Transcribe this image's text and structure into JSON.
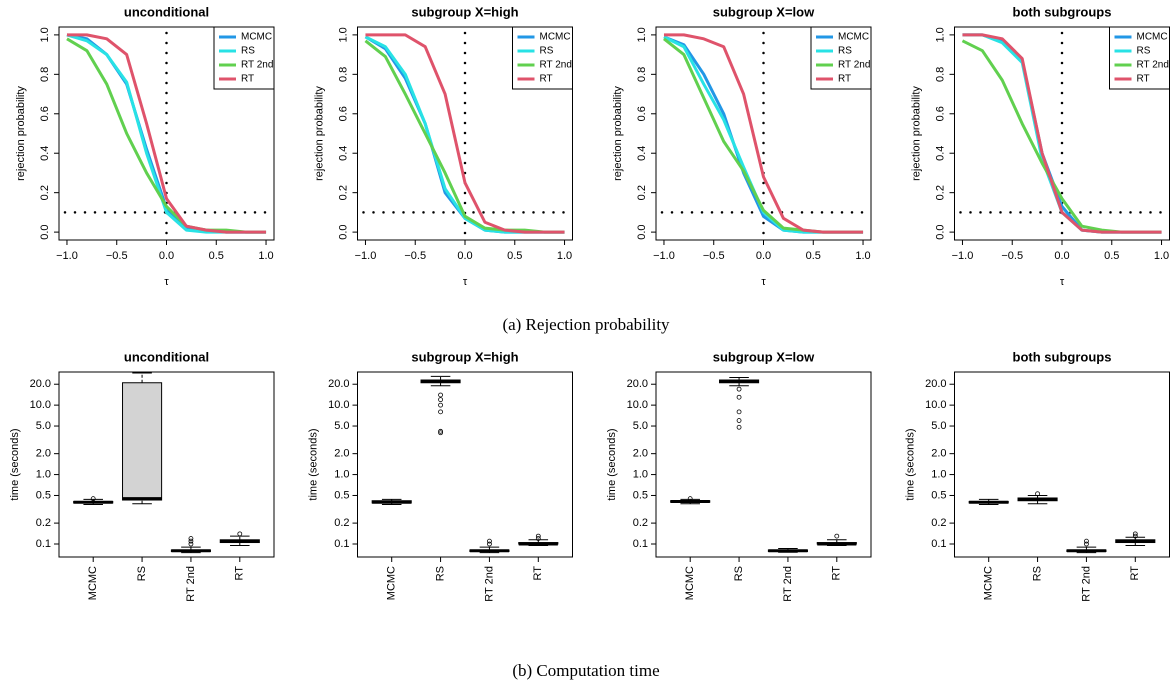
{
  "chart_data": [
    {
      "type": "line",
      "title": "unconditional",
      "xlabel": "τ",
      "ylabel": "rejection probability",
      "x": [
        -1,
        -0.8,
        -0.6,
        -0.4,
        -0.2,
        0,
        0.2,
        0.4,
        0.6,
        0.8,
        1
      ],
      "series": [
        {
          "name": "MCMC",
          "color": "#2297e6",
          "values": [
            1.0,
            0.98,
            0.9,
            0.75,
            0.42,
            0.12,
            0.02,
            0.01,
            0,
            0,
            0
          ]
        },
        {
          "name": "RS",
          "color": "#28e2e5",
          "values": [
            1.0,
            0.97,
            0.9,
            0.76,
            0.4,
            0.1,
            0.01,
            0,
            0,
            0,
            0
          ]
        },
        {
          "name": "RT 2nd",
          "color": "#61d04f",
          "values": [
            0.98,
            0.92,
            0.75,
            0.5,
            0.3,
            0.13,
            0.03,
            0.01,
            0.01,
            0,
            0
          ]
        },
        {
          "name": "RT",
          "color": "#df536b",
          "values": [
            1.0,
            1.0,
            0.98,
            0.9,
            0.55,
            0.17,
            0.03,
            0.01,
            0,
            0,
            0
          ]
        }
      ],
      "hline": 0.1,
      "vline": 0,
      "legend": "topright",
      "xlim": [
        -1.08,
        1.08
      ],
      "ylim": [
        -0.04,
        1.04
      ],
      "xticks": [
        {
          "value": -1,
          "label": "−1.0"
        },
        {
          "value": -0.5,
          "label": "−0.5"
        },
        {
          "value": 0,
          "label": "0.0"
        },
        0.5,
        {
          "value": 1,
          "label": "1.0"
        }
      ],
      "yticks": [
        {
          "value": 0,
          "label": "0.0"
        },
        0.2,
        0.4,
        0.6,
        0.8,
        {
          "value": 1,
          "label": "1.0"
        }
      ]
    },
    {
      "type": "line",
      "title": "subgroup X=high",
      "xlabel": "τ",
      "ylabel": "rejection probability",
      "x": [
        -1,
        -0.8,
        -0.6,
        -0.4,
        -0.2,
        0,
        0.2,
        0.4,
        0.6,
        0.8,
        1
      ],
      "series": [
        {
          "name": "MCMC",
          "color": "#2297e6",
          "values": [
            0.99,
            0.93,
            0.78,
            0.55,
            0.2,
            0.07,
            0.01,
            0,
            0,
            0,
            0
          ]
        },
        {
          "name": "RS",
          "color": "#28e2e5",
          "values": [
            0.99,
            0.94,
            0.8,
            0.55,
            0.22,
            0.07,
            0.01,
            0,
            0,
            0,
            0
          ]
        },
        {
          "name": "RT 2nd",
          "color": "#61d04f",
          "values": [
            0.97,
            0.89,
            0.7,
            0.5,
            0.3,
            0.08,
            0.02,
            0.01,
            0.01,
            0,
            0
          ]
        },
        {
          "name": "RT",
          "color": "#df536b",
          "values": [
            1.0,
            1.0,
            1.0,
            0.94,
            0.7,
            0.25,
            0.05,
            0.01,
            0,
            0,
            0
          ]
        }
      ],
      "hline": 0.1,
      "vline": 0,
      "legend": "topright",
      "xlim": [
        -1.08,
        1.08
      ],
      "ylim": [
        -0.04,
        1.04
      ],
      "xticks": [
        {
          "value": -1,
          "label": "−1.0"
        },
        {
          "value": -0.5,
          "label": "−0.5"
        },
        {
          "value": 0,
          "label": "0.0"
        },
        0.5,
        {
          "value": 1,
          "label": "1.0"
        }
      ],
      "yticks": [
        {
          "value": 0,
          "label": "0.0"
        },
        0.2,
        0.4,
        0.6,
        0.8,
        {
          "value": 1,
          "label": "1.0"
        }
      ]
    },
    {
      "type": "line",
      "title": "subgroup X=low",
      "xlabel": "τ",
      "ylabel": "rejection probability",
      "x": [
        -1,
        -0.8,
        -0.6,
        -0.4,
        -0.2,
        0,
        0.2,
        0.4,
        0.6,
        0.8,
        1
      ],
      "series": [
        {
          "name": "MCMC",
          "color": "#2297e6",
          "values": [
            0.99,
            0.95,
            0.8,
            0.6,
            0.3,
            0.08,
            0.01,
            0,
            0,
            0,
            0
          ]
        },
        {
          "name": "RS",
          "color": "#28e2e5",
          "values": [
            0.99,
            0.94,
            0.75,
            0.57,
            0.33,
            0.1,
            0.01,
            0,
            0,
            0,
            0
          ]
        },
        {
          "name": "RT 2nd",
          "color": "#61d04f",
          "values": [
            0.98,
            0.9,
            0.68,
            0.46,
            0.31,
            0.11,
            0.02,
            0.01,
            0,
            0,
            0
          ]
        },
        {
          "name": "RT",
          "color": "#df536b",
          "values": [
            1.0,
            1.0,
            0.98,
            0.94,
            0.7,
            0.28,
            0.07,
            0.01,
            0,
            0,
            0
          ]
        }
      ],
      "hline": 0.1,
      "vline": 0,
      "legend": "topright",
      "xlim": [
        -1.08,
        1.08
      ],
      "ylim": [
        -0.04,
        1.04
      ],
      "xticks": [
        {
          "value": -1,
          "label": "−1.0"
        },
        {
          "value": -0.5,
          "label": "−0.5"
        },
        {
          "value": 0,
          "label": "0.0"
        },
        0.5,
        {
          "value": 1,
          "label": "1.0"
        }
      ],
      "yticks": [
        {
          "value": 0,
          "label": "0.0"
        },
        0.2,
        0.4,
        0.6,
        0.8,
        {
          "value": 1,
          "label": "1.0"
        }
      ]
    },
    {
      "type": "line",
      "title": "both subgroups",
      "xlabel": "τ",
      "ylabel": "rejection probability",
      "x": [
        -1,
        -0.8,
        -0.6,
        -0.4,
        -0.2,
        0,
        0.2,
        0.4,
        0.6,
        0.8,
        1
      ],
      "series": [
        {
          "name": "MCMC",
          "color": "#2297e6",
          "values": [
            1.0,
            1.0,
            0.97,
            0.87,
            0.4,
            0.13,
            0.01,
            0,
            0,
            0,
            0
          ]
        },
        {
          "name": "RS",
          "color": "#28e2e5",
          "values": [
            1.0,
            1.0,
            0.96,
            0.86,
            0.37,
            0.1,
            0.01,
            0,
            0,
            0,
            0
          ]
        },
        {
          "name": "RT 2nd",
          "color": "#61d04f",
          "values": [
            0.97,
            0.92,
            0.77,
            0.55,
            0.35,
            0.17,
            0.03,
            0.01,
            0,
            0,
            0
          ]
        },
        {
          "name": "RT",
          "color": "#df536b",
          "values": [
            1.0,
            1.0,
            0.98,
            0.88,
            0.4,
            0.1,
            0.01,
            0,
            0,
            0,
            0
          ]
        }
      ],
      "hline": 0.1,
      "vline": 0,
      "legend": "topright",
      "xlim": [
        -1.08,
        1.08
      ],
      "ylim": [
        -0.04,
        1.04
      ],
      "xticks": [
        {
          "value": -1,
          "label": "−1.0"
        },
        {
          "value": -0.5,
          "label": "−0.5"
        },
        {
          "value": 0,
          "label": "0.0"
        },
        0.5,
        {
          "value": 1,
          "label": "1.0"
        }
      ],
      "yticks": [
        {
          "value": 0,
          "label": "0.0"
        },
        0.2,
        0.4,
        0.6,
        0.8,
        {
          "value": 1,
          "label": "1.0"
        }
      ]
    },
    {
      "type": "box",
      "title": "unconditional",
      "ylabel": "time (seconds)",
      "ylog": true,
      "color": "#d3d3d3",
      "categories": [
        "MCMC",
        "RS",
        "RT 2nd",
        "RT"
      ],
      "boxes": [
        {
          "min": 0.37,
          "q1": 0.39,
          "median": 0.4,
          "q3": 0.41,
          "max": 0.44,
          "outliers": [
            0.45
          ]
        },
        {
          "min": 0.38,
          "q1": 0.43,
          "median": 0.45,
          "q3": 21,
          "max": 29,
          "outliers": []
        },
        {
          "min": 0.075,
          "q1": 0.078,
          "median": 0.08,
          "q3": 0.082,
          "max": 0.09,
          "outliers": [
            0.1,
            0.11,
            0.12
          ]
        },
        {
          "min": 0.095,
          "q1": 0.105,
          "median": 0.11,
          "q3": 0.115,
          "max": 0.13,
          "outliers": [
            0.14
          ]
        }
      ],
      "ylim": [
        0.065,
        30
      ],
      "yticks": [
        0.1,
        0.2,
        0.5,
        {
          "value": 1,
          "label": "1.0"
        },
        {
          "value": 2,
          "label": "2.0"
        },
        {
          "value": 5,
          "label": "5.0"
        },
        {
          "value": 10,
          "label": "10.0"
        },
        {
          "value": 20,
          "label": "20.0"
        }
      ]
    },
    {
      "type": "box",
      "title": "subgroup X=high",
      "ylabel": "time (seconds)",
      "ylog": true,
      "color": "#d3d3d3",
      "categories": [
        "MCMC",
        "RS",
        "RT 2nd",
        "RT"
      ],
      "boxes": [
        {
          "min": 0.37,
          "q1": 0.39,
          "median": 0.4,
          "q3": 0.42,
          "max": 0.44,
          "outliers": []
        },
        {
          "min": 19,
          "q1": 21,
          "median": 22,
          "q3": 23,
          "max": 26,
          "outliers": [
            14,
            12,
            10,
            8,
            4.2,
            4
          ]
        },
        {
          "min": 0.075,
          "q1": 0.078,
          "median": 0.08,
          "q3": 0.082,
          "max": 0.09,
          "outliers": [
            0.1,
            0.11
          ]
        },
        {
          "min": 0.095,
          "q1": 0.1,
          "median": 0.1,
          "q3": 0.105,
          "max": 0.115,
          "outliers": [
            0.12,
            0.13
          ]
        }
      ],
      "ylim": [
        0.065,
        30
      ],
      "yticks": [
        0.1,
        0.2,
        0.5,
        {
          "value": 1,
          "label": "1.0"
        },
        {
          "value": 2,
          "label": "2.0"
        },
        {
          "value": 5,
          "label": "5.0"
        },
        {
          "value": 10,
          "label": "10.0"
        },
        {
          "value": 20,
          "label": "20.0"
        }
      ]
    },
    {
      "type": "box",
      "title": "subgroup X=low",
      "ylabel": "time (seconds)",
      "ylog": true,
      "color": "#d3d3d3",
      "categories": [
        "MCMC",
        "RS",
        "RT 2nd",
        "RT"
      ],
      "boxes": [
        {
          "min": 0.38,
          "q1": 0.4,
          "median": 0.41,
          "q3": 0.42,
          "max": 0.44,
          "outliers": [
            0.45
          ]
        },
        {
          "min": 19,
          "q1": 21,
          "median": 22,
          "q3": 23,
          "max": 25,
          "outliers": [
            17,
            13,
            8,
            6,
            4.8
          ]
        },
        {
          "min": 0.076,
          "q1": 0.078,
          "median": 0.08,
          "q3": 0.082,
          "max": 0.086,
          "outliers": []
        },
        {
          "min": 0.095,
          "q1": 0.1,
          "median": 0.1,
          "q3": 0.105,
          "max": 0.115,
          "outliers": [
            0.13
          ]
        }
      ],
      "ylim": [
        0.065,
        30
      ],
      "yticks": [
        0.1,
        0.2,
        0.5,
        {
          "value": 1,
          "label": "1.0"
        },
        {
          "value": 2,
          "label": "2.0"
        },
        {
          "value": 5,
          "label": "5.0"
        },
        {
          "value": 10,
          "label": "10.0"
        },
        {
          "value": 20,
          "label": "20.0"
        }
      ]
    },
    {
      "type": "box",
      "title": "both subgroups",
      "ylabel": "time (seconds)",
      "ylog": true,
      "color": "#d3d3d3",
      "categories": [
        "MCMC",
        "RS",
        "RT 2nd",
        "RT"
      ],
      "boxes": [
        {
          "min": 0.37,
          "q1": 0.39,
          "median": 0.4,
          "q3": 0.41,
          "max": 0.44,
          "outliers": []
        },
        {
          "min": 0.38,
          "q1": 0.42,
          "median": 0.44,
          "q3": 0.46,
          "max": 0.5,
          "outliers": [
            0.53
          ]
        },
        {
          "min": 0.075,
          "q1": 0.078,
          "median": 0.08,
          "q3": 0.082,
          "max": 0.09,
          "outliers": [
            0.1,
            0.11
          ]
        },
        {
          "min": 0.095,
          "q1": 0.105,
          "median": 0.11,
          "q3": 0.115,
          "max": 0.125,
          "outliers": [
            0.13,
            0.14
          ]
        }
      ],
      "ylim": [
        0.065,
        30
      ],
      "yticks": [
        0.1,
        0.2,
        0.5,
        {
          "value": 1,
          "label": "1.0"
        },
        {
          "value": 2,
          "label": "2.0"
        },
        {
          "value": 5,
          "label": "5.0"
        },
        {
          "value": 10,
          "label": "10.0"
        },
        {
          "value": 20,
          "label": "20.0"
        }
      ]
    }
  ],
  "captions": [
    "(a) Rejection probability",
    "(b) Computation time"
  ]
}
